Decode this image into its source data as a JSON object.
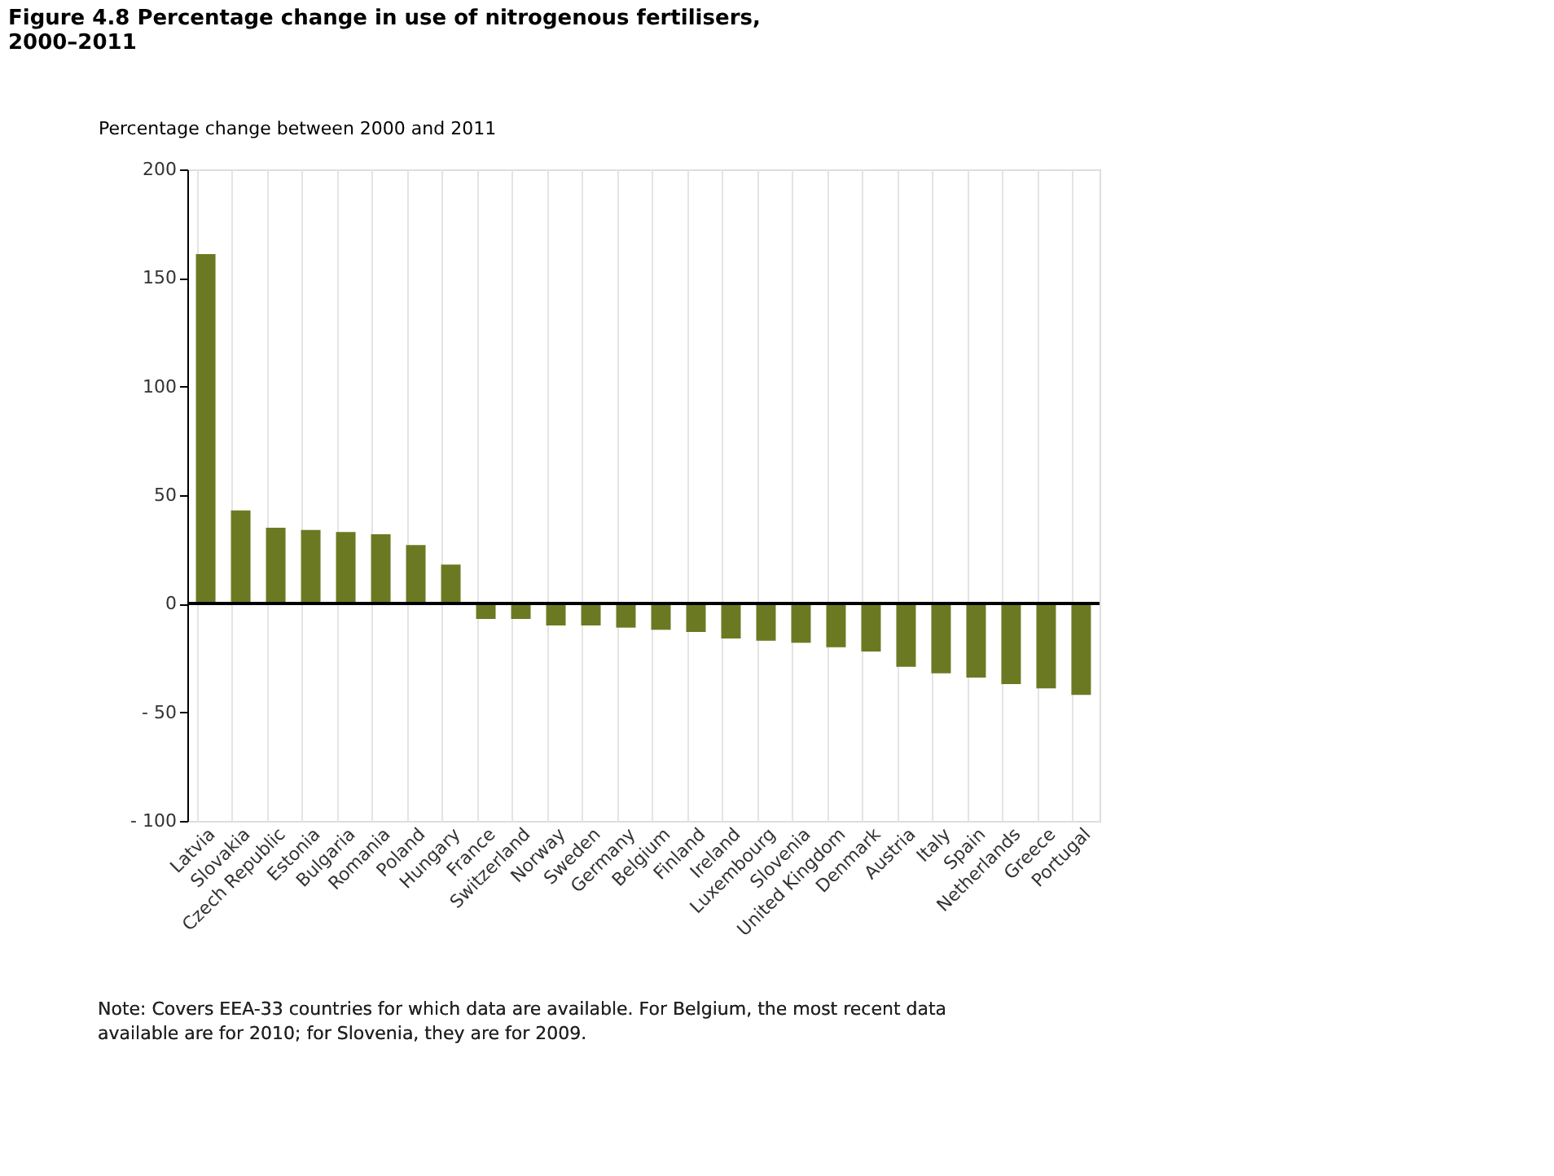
{
  "chart_data": {
    "type": "bar",
    "title": "Figure 4.8 Percentage change in use of nitrogenous fertilisers, 2000–2011",
    "ylabel": "Percentage change between 2000 and 2011",
    "categories": [
      "Latvia",
      "Slovakia",
      "Czech Republic",
      "Estonia",
      "Bulgaria",
      "Romania",
      "Poland",
      "Hungary",
      "France",
      "Switzerland",
      "Norway",
      "Sweden",
      "Germany",
      "Belgium",
      "Finland",
      "Ireland",
      "Luxembourg",
      "Slovenia",
      "United Kingdom",
      "Denmark",
      "Austria",
      "Italy",
      "Spain",
      "Netherlands",
      "Greece",
      "Portugal"
    ],
    "values": [
      161,
      43,
      35,
      34,
      33,
      32,
      27,
      18,
      -7,
      -7,
      -10,
      -10,
      -11,
      -12,
      -13,
      -16,
      -17,
      -18,
      -20,
      -22,
      -29,
      -32,
      -34,
      -37,
      -39,
      -42
    ],
    "color": "#6b7a22",
    "ylim": [
      -100,
      200
    ],
    "yticks": [
      {
        "value": -100,
        "label": "- 100"
      },
      {
        "value": -50,
        "label": "- 50"
      },
      0,
      50,
      100,
      150,
      200
    ],
    "grid": "x",
    "annotations": [
      "Note: Covers EEA-33 countries for which data are available. For Belgium, the most recent data available are for 2010; for Slovenia, they are for 2009."
    ]
  }
}
